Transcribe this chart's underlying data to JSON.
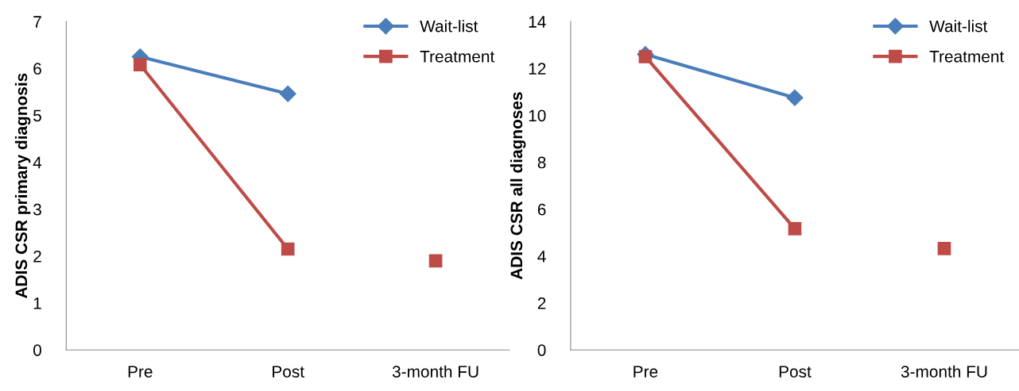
{
  "chart_data": [
    {
      "type": "line",
      "ylabel": "ADIS CSR primary diagnosis",
      "categories": [
        "Pre",
        "Post",
        "3-month FU"
      ],
      "ylim": [
        0,
        7
      ],
      "yticks": [
        0,
        1,
        2,
        3,
        4,
        5,
        6,
        7
      ],
      "grid": false,
      "legend": "top right",
      "series": [
        {
          "name": "Wait-list",
          "color": "#4a7ebb",
          "marker": "diamond",
          "values": [
            6.25,
            5.46,
            null
          ]
        },
        {
          "name": "Treatment",
          "color": "#be4b48",
          "marker": "square",
          "values": [
            6.08,
            2.15,
            null
          ]
        },
        {
          "type": "scatter",
          "color": "#be4b48",
          "marker": "square",
          "values": [
            null,
            null,
            1.9
          ]
        }
      ]
    },
    {
      "type": "line",
      "ylabel": "ADIS CSR all diagnoses",
      "categories": [
        "Pre",
        "Post",
        "3-month FU"
      ],
      "ylim": [
        0,
        14
      ],
      "yticks": [
        0,
        2,
        4,
        6,
        8,
        10,
        12,
        14
      ],
      "grid": false,
      "legend": "top right",
      "series": [
        {
          "name": "Wait-list",
          "color": "#4a7ebb",
          "marker": "diamond",
          "values": [
            12.6,
            10.75,
            null
          ]
        },
        {
          "name": "Treatment",
          "color": "#be4b48",
          "marker": "square",
          "values": [
            12.5,
            5.17,
            null
          ]
        },
        {
          "type": "scatter",
          "color": "#be4b48",
          "marker": "square",
          "values": [
            null,
            null,
            4.32
          ]
        }
      ]
    }
  ]
}
